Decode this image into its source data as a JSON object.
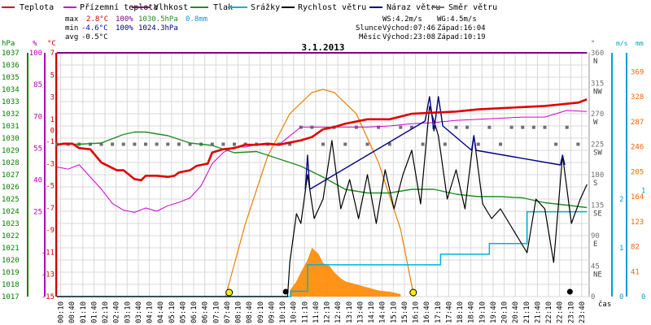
{
  "legend": {
    "teplota": "Teplota",
    "prizemni": "Přízemní teplota",
    "vlhkost": "Vlhkost",
    "tlak": "Tlak",
    "srazky": "Srážky",
    "rychlost": "Rychlost větru",
    "naraz": "Náraz větru",
    "smer": "Směr větru"
  },
  "stats": {
    "max_label": "max",
    "max_temp": "2.8°C",
    "max_hum": "100%",
    "max_press": "1030.5hPa",
    "rain": "0.8mm",
    "min_label": "min",
    "min_temp": "-4.6°C",
    "min_hum": "100%",
    "min_press": "1024.3hPa",
    "avg_label": "avg",
    "avg_temp": "-0.5°C",
    "ws": "WS:4.2m/s",
    "wg": "WG:4.5m/s",
    "slunce": "Slunce",
    "slunce_vychod": "Východ:07:46",
    "slunce_zapad": "Západ:16:04",
    "mesic": "Měsíc",
    "mesic_vychod": "Východ:23:08",
    "mesic_zapad": "Západ:10:19"
  },
  "colors": {
    "teplota": "#e00000",
    "prizemni": "#d000d0",
    "vlhkost": "#800080",
    "tlak": "#228b22",
    "srazky": "#00b0e0",
    "rychlost": "#000000",
    "naraz": "#00007f",
    "smer": "#707070",
    "slunce": "#e88000",
    "rain_rate": "#ff8800",
    "axis_hpa": "#008000",
    "axis_pct": "#b000b0",
    "axis_c": "#cc0000",
    "axis_dir": "#707070",
    "axis_ms": "#00a0d0",
    "axis_mm": "#00a0d0",
    "axis_rate": "#ff6000"
  },
  "chart_data": {
    "type": "line",
    "title": "3.1.2013",
    "xlabel": "čas",
    "x_ticks": [
      "00:10",
      "00:40",
      "01:10",
      "01:40",
      "02:10",
      "02:40",
      "03:10",
      "03:40",
      "04:10",
      "04:40",
      "05:10",
      "05:40",
      "06:10",
      "06:40",
      "07:10",
      "07:40",
      "08:10",
      "08:40",
      "09:10",
      "09:40",
      "10:10",
      "10:40",
      "11:10",
      "11:40",
      "12:10",
      "12:40",
      "13:10",
      "13:40",
      "14:10",
      "14:40",
      "15:10",
      "15:40",
      "16:10",
      "16:40",
      "17:10",
      "17:40",
      "18:10",
      "18:40",
      "19:10",
      "19:40",
      "20:10",
      "20:40",
      "21:10",
      "21:40",
      "22:10",
      "22:40",
      "23:10",
      "23:40"
    ],
    "axes": {
      "hpa": {
        "label": "hPa",
        "ticks": [
          "1037",
          "1036",
          "1035",
          "1034",
          "1033",
          "1032",
          "1031",
          "1030",
          "1029",
          "1028",
          "1027",
          "1026",
          "1025",
          "1024",
          "1023",
          "1022",
          "1021",
          "1020",
          "1019",
          "1018",
          "1017"
        ],
        "range": [
          1017,
          1037
        ]
      },
      "percent": {
        "label": "%",
        "ticks": [
          "100",
          "85",
          "70",
          "55",
          "40",
          "25"
        ],
        "range": [
          -15,
          100
        ]
      },
      "celsius": {
        "label": "°C",
        "ticks": [
          "7",
          "5",
          "3",
          "1",
          "0",
          "-1",
          "-3",
          "-5",
          "-7",
          "-9",
          "-11",
          "-13",
          "-15"
        ],
        "range": [
          -15,
          7
        ]
      },
      "direction": {
        "label": "°",
        "ticks": [
          "360",
          "315",
          "270",
          "225",
          "180",
          "135",
          "90",
          "45",
          "0"
        ],
        "dir_names": [
          "N",
          "NW",
          "W",
          "SW",
          "S",
          "SE",
          "E",
          "NE"
        ],
        "range": [
          0,
          360
        ]
      },
      "ms": {
        "label": "m/s",
        "ticks": [
          "2",
          "1",
          "0"
        ],
        "range": [
          0,
          5
        ]
      },
      "mm": {
        "label": "mm",
        "ticks": [
          "1",
          "0"
        ],
        "range": [
          0,
          2.3
        ]
      },
      "rate": {
        "ticks": [
          "369",
          "328",
          "287",
          "246",
          "205",
          "164",
          "123",
          "82",
          "41"
        ],
        "range": [
          0,
          400
        ]
      }
    },
    "series": [
      {
        "name": "Teplota",
        "key": "teplota",
        "axis": "celsius",
        "x": [
          0,
          0.3,
          0.7,
          1,
          1.5,
          2,
          2.3,
          2.7,
          3,
          3.5,
          3.8,
          4,
          4.5,
          5,
          5.3,
          5.5,
          6,
          6.3,
          6.8,
          7,
          7.5,
          8,
          8.5,
          9,
          9.5,
          10,
          10.5,
          11,
          11.5,
          12,
          12.5,
          13,
          13.5,
          14,
          15,
          16,
          17,
          18,
          19,
          20,
          21,
          22,
          23,
          23.5,
          23.9
        ],
        "y": [
          -1.3,
          -1.2,
          -1.2,
          -1.6,
          -1.7,
          -2.9,
          -3.2,
          -3.6,
          -3.6,
          -4.4,
          -4.5,
          -4.1,
          -4.1,
          -4.2,
          -4.1,
          -3.8,
          -3.6,
          -3.2,
          -3.0,
          -2.0,
          -1.7,
          -1.6,
          -1.3,
          -1.3,
          -1.2,
          -1.3,
          -1.1,
          -0.9,
          -0.6,
          0.1,
          0.3,
          0.6,
          0.8,
          1.0,
          1.0,
          1.5,
          1.6,
          1.7,
          1.9,
          2.0,
          2.1,
          2.2,
          2.4,
          2.5,
          2.8
        ]
      },
      {
        "name": "Přízemní teplota",
        "key": "prizemni",
        "axis": "celsius",
        "x": [
          0,
          0.5,
          1,
          1.5,
          2,
          2.5,
          3,
          3.5,
          4,
          4.5,
          5,
          5.5,
          6,
          6.5,
          7,
          7.5,
          8,
          8.5,
          9,
          10,
          11,
          11.5,
          12,
          13,
          14,
          15,
          16,
          17,
          18,
          19,
          20,
          21,
          22,
          23,
          23.9
        ],
        "y": [
          -3.3,
          -3.5,
          -3.1,
          -4.2,
          -5.3,
          -6.6,
          -7.2,
          -7.4,
          -7.0,
          -7.3,
          -6.8,
          -6.5,
          -6.1,
          -5.0,
          -3.0,
          -2.0,
          -1.5,
          -1.5,
          -1.3,
          -1.3,
          0.3,
          0.3,
          0.3,
          0.3,
          0.3,
          0.4,
          0.6,
          0.7,
          0.9,
          1.0,
          1.1,
          1.2,
          1.2,
          1.8,
          1.7
        ]
      },
      {
        "name": "Vlhkost",
        "key": "vlhkost",
        "axis": "percent",
        "x": [
          0,
          23.9
        ],
        "y": [
          100,
          100
        ]
      },
      {
        "name": "Tlak",
        "key": "tlak",
        "axis": "hpa",
        "x": [
          0,
          1,
          2,
          3,
          3.5,
          4,
          5,
          6,
          7,
          8,
          9,
          10,
          11,
          12,
          13,
          14,
          15,
          16,
          17,
          18,
          19,
          20,
          21,
          22,
          23,
          23.9
        ],
        "y": [
          1029.5,
          1029.5,
          1029.6,
          1030.3,
          1030.5,
          1030.5,
          1030.2,
          1029.6,
          1029.4,
          1028.8,
          1028.9,
          1028.3,
          1027.7,
          1026.8,
          1025.8,
          1025.5,
          1025.5,
          1025.8,
          1025.8,
          1025.4,
          1025.2,
          1025.2,
          1025.1,
          1024.7,
          1024.5,
          1024.3
        ]
      },
      {
        "name": "Srážky",
        "key": "srazky",
        "axis": "mm",
        "x": [
          0,
          10.5,
          10.55,
          11,
          11.3,
          17,
          17.3,
          19.4,
          19.5,
          21,
          21.2,
          22,
          22.1,
          23.9
        ],
        "y": [
          0,
          0,
          0.05,
          0.05,
          0.3,
          0.3,
          0.4,
          0.4,
          0.5,
          0.5,
          0.8,
          0.8,
          0.8,
          0.8
        ]
      },
      {
        "name": "Rychlost větru",
        "key": "rychlost",
        "axis": "ms",
        "x": [
          0,
          10.4,
          10.5,
          10.8,
          11,
          11.3,
          11.6,
          12,
          12.4,
          12.8,
          13.2,
          13.6,
          14,
          14.4,
          14.8,
          15.2,
          15.6,
          16,
          16.4,
          16.8,
          17.2,
          17.6,
          18,
          18.4,
          18.8,
          19.2,
          19.6,
          20,
          20.4,
          20.8,
          21.2,
          21.6,
          22,
          22.4,
          22.8,
          23.2,
          23.6,
          23.9
        ],
        "y": [
          0,
          0,
          0.7,
          1.7,
          1.5,
          2.5,
          1.6,
          2.0,
          3.2,
          1.8,
          2.4,
          1.6,
          2.5,
          1.5,
          2.6,
          1.8,
          2.5,
          3.0,
          1.9,
          3.9,
          3.3,
          2.0,
          2.6,
          1.8,
          3.3,
          1.9,
          1.6,
          1.8,
          1.5,
          1.2,
          0.9,
          2.0,
          1.8,
          0.7,
          2.9,
          1.5,
          2.0,
          2.3
        ]
      },
      {
        "name": "Náraz větru",
        "key": "naraz",
        "axis": "ms",
        "x": [
          11.2,
          11.3,
          11.4,
          16.6,
          16.8,
          17,
          17.2,
          17.4,
          18.7,
          18.8,
          18.9,
          22.7,
          22.8,
          22.9
        ],
        "y": [
          2.2,
          2.9,
          2.2,
          3.6,
          4.1,
          3.4,
          4.1,
          3.5,
          3.0,
          3.3,
          3.0,
          2.7,
          2.9,
          2.7
        ]
      },
      {
        "name": "Sluneční záření",
        "key": "slunce",
        "axis": "rate",
        "x": [
          7.6,
          8.5,
          9.5,
          10.5,
          11.5,
          12,
          12.5,
          13.5,
          14.5,
          15.5,
          16.1
        ],
        "y": [
          0,
          120,
          230,
          300,
          335,
          340,
          335,
          300,
          220,
          110,
          0
        ]
      },
      {
        "name": "Intenzita srážek",
        "key": "rain_rate",
        "axis": "rate",
        "x": [
          10.5,
          10.8,
          11,
          11.3,
          11.5,
          11.8,
          12,
          12.3,
          12.5,
          12.8,
          13,
          13.5,
          14,
          14.5,
          15,
          15.5
        ],
        "y": [
          10,
          25,
          40,
          60,
          80,
          70,
          55,
          50,
          40,
          30,
          25,
          20,
          15,
          10,
          8,
          4
        ]
      }
    ],
    "wind_dir_points": {
      "hours": [
        0,
        0.5,
        1,
        1.5,
        2,
        2.5,
        3,
        3.5,
        4,
        4.5,
        5,
        5.5,
        6,
        6.5,
        7,
        7.5,
        8,
        8.5,
        9,
        9.5,
        10,
        10.5,
        11,
        11.5,
        12,
        12.5,
        13,
        13.5,
        14,
        14.5,
        15,
        15.5,
        16,
        16.5,
        17,
        17.5,
        18,
        18.5,
        19,
        19.5,
        20,
        20.5,
        21,
        21.5,
        22,
        22.5,
        23,
        23.5
      ],
      "deg": [
        225,
        225,
        225,
        225,
        225,
        225,
        225,
        225,
        225,
        225,
        225,
        225,
        225,
        225,
        225,
        225,
        225,
        225,
        225,
        225,
        225,
        225,
        250,
        250,
        225,
        250,
        225,
        250,
        225,
        250,
        225,
        250,
        250,
        225,
        250,
        225,
        250,
        250,
        225,
        250,
        225,
        250,
        250,
        250,
        250,
        225,
        250,
        225
      ]
    },
    "sun_markers": {
      "sunrise": "07:46",
      "sunset": "16:04"
    },
    "moon_markers": {
      "moonset": "10:19",
      "moonrise": "23:08"
    },
    "grid": true,
    "legend_position": "top"
  }
}
